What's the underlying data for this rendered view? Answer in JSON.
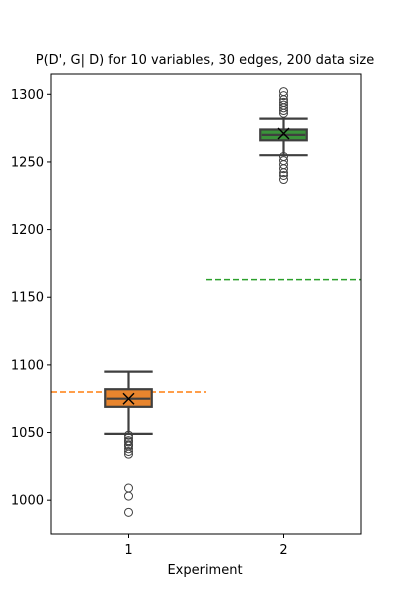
{
  "chart_data": {
    "type": "box",
    "title": "P(D', G| D) for 10 variables, 30 edges, 200 data size",
    "xlabel": "Experiment",
    "ylabel": "",
    "categories": [
      "1",
      "2"
    ],
    "ylim": [
      975,
      1315
    ],
    "yticks": [
      1000,
      1050,
      1100,
      1150,
      1200,
      1250,
      1300
    ],
    "grid": false,
    "boxes": [
      {
        "category": "1",
        "fill": "#e8852e",
        "median_color": "#e8852e",
        "whisker_low": 1049,
        "q1": 1069,
        "median": 1075,
        "q3": 1082,
        "whisker_high": 1095,
        "mean": 1075,
        "outliers": [
          1048,
          1046,
          1044,
          1043,
          1041,
          1040,
          1038,
          1036,
          1034,
          1009,
          1003,
          991
        ]
      },
      {
        "category": "2",
        "fill": "#3a923a",
        "median_color": "#3a923a",
        "whisker_low": 1255,
        "q1": 1266,
        "median": 1270,
        "q3": 1274,
        "whisker_high": 1282,
        "mean": 1271,
        "outliers": [
          1302,
          1299,
          1296,
          1294,
          1292,
          1290,
          1288,
          1286,
          1254,
          1251,
          1248,
          1245,
          1242,
          1240,
          1237
        ]
      }
    ],
    "reference_lines": [
      {
        "category": "1",
        "value": 1080,
        "color": "#ff7f0e"
      },
      {
        "category": "2",
        "value": 1163,
        "color": "#2ca02c"
      }
    ],
    "colors": {
      "box_edge": "#3f3f3f",
      "mean_marker": "#000000"
    }
  }
}
